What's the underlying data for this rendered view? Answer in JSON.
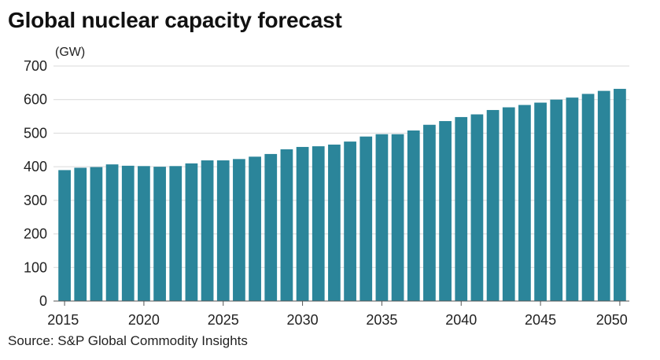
{
  "title": "Global nuclear capacity forecast",
  "source": "Source: S&P Global Commodity Insights",
  "colors": {
    "bar": "#2b859a",
    "grid": "#d9d9d9",
    "axis": "#555555"
  },
  "chart_data": {
    "type": "bar",
    "title": "Global nuclear capacity forecast",
    "unit_label": "(GW)",
    "xlabel": "",
    "ylabel": "",
    "ylim": [
      0,
      700
    ],
    "yticks": [
      0,
      100,
      200,
      300,
      400,
      500,
      600,
      700
    ],
    "xticks": [
      2015,
      2020,
      2025,
      2030,
      2035,
      2040,
      2045,
      2050
    ],
    "grid": true,
    "categories": [
      2015,
      2016,
      2017,
      2018,
      2019,
      2020,
      2021,
      2022,
      2023,
      2024,
      2025,
      2026,
      2027,
      2028,
      2029,
      2030,
      2031,
      2032,
      2033,
      2034,
      2035,
      2036,
      2037,
      2038,
      2039,
      2040,
      2041,
      2042,
      2043,
      2044,
      2045,
      2046,
      2047,
      2048,
      2049,
      2050
    ],
    "values": [
      390,
      397,
      399,
      407,
      403,
      402,
      400,
      402,
      410,
      419,
      419,
      423,
      430,
      438,
      452,
      459,
      461,
      466,
      475,
      490,
      497,
      497,
      508,
      525,
      536,
      548,
      556,
      569,
      577,
      584,
      591,
      600,
      606,
      617,
      626,
      632
    ]
  }
}
